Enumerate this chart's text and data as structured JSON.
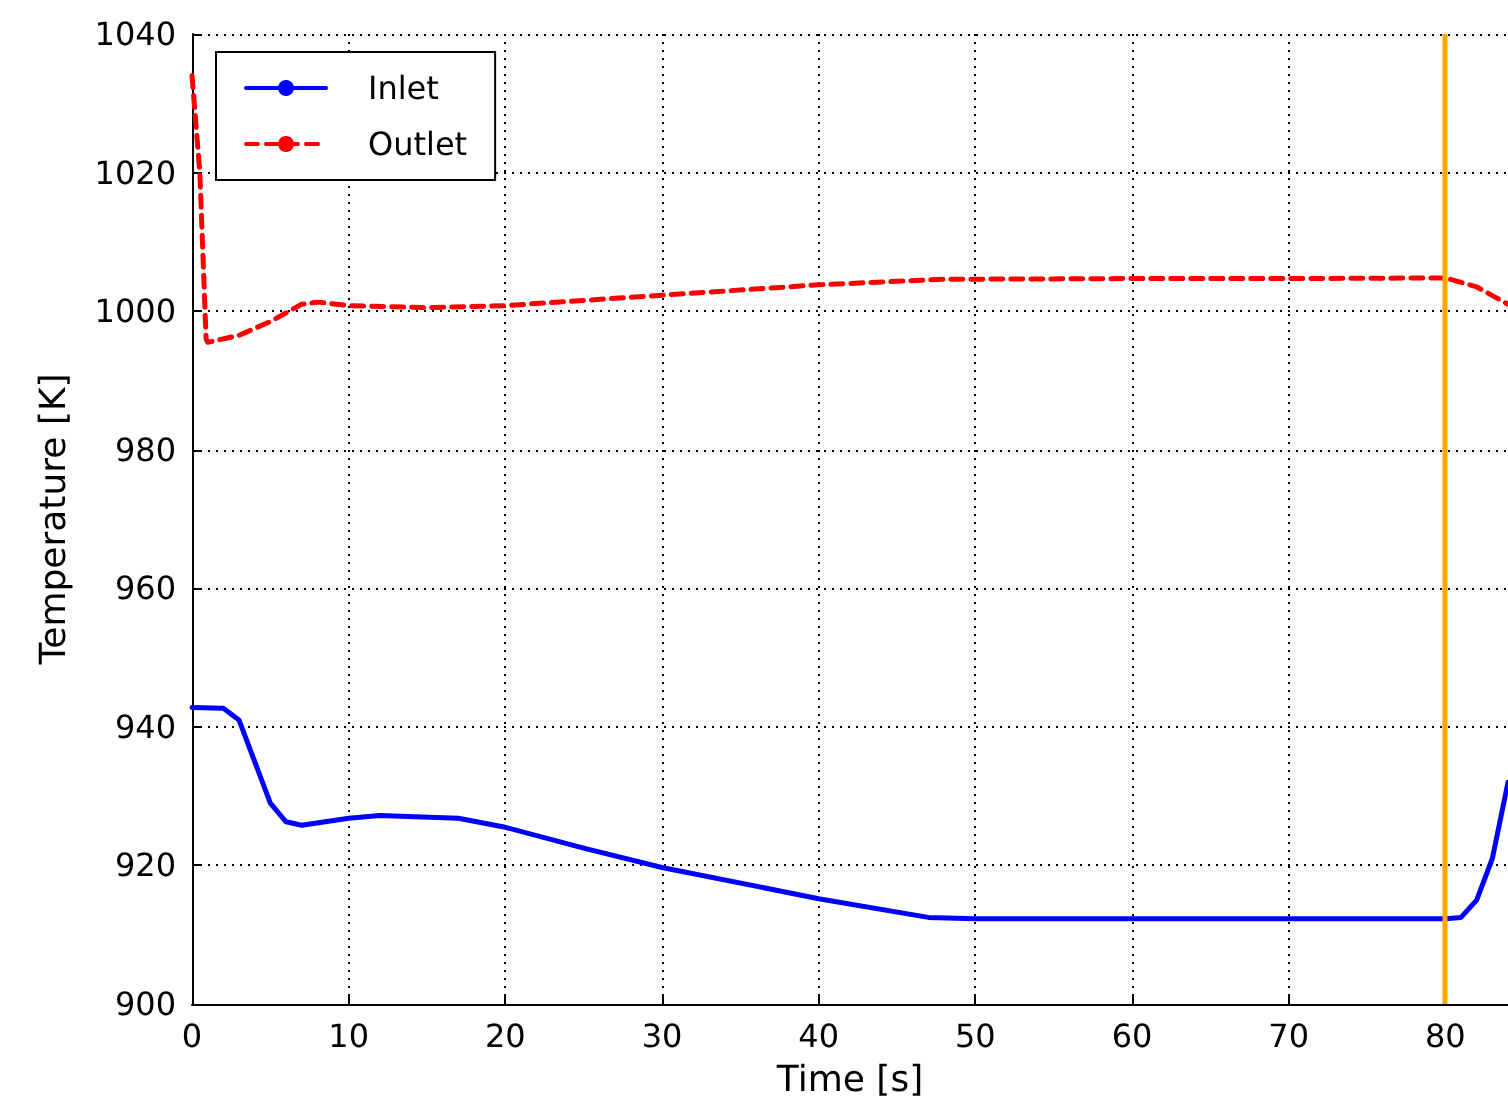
{
  "chart_data": {
    "type": "line",
    "xlabel": "Time [s]",
    "ylabel": "Temperature [K]",
    "xlim": [
      0,
      84
    ],
    "xticks": [
      0,
      10,
      20,
      30,
      40,
      50,
      60,
      70,
      80
    ],
    "ylim": [
      900,
      1040
    ],
    "yticks": [
      900,
      920,
      940,
      960,
      980,
      1000,
      1020,
      1040
    ],
    "grid": true,
    "legend": "top left",
    "marker": "none",
    "series": [
      {
        "name": "Inlet",
        "color": "#0000ff",
        "line_style": "solid",
        "x": [
          0,
          2,
          3,
          4,
          5,
          6,
          7,
          10,
          12,
          17,
          20,
          25,
          30,
          40,
          47,
          50,
          60,
          70,
          80,
          81,
          82,
          83,
          84
        ],
        "values": [
          942.8,
          942.7,
          941,
          935,
          929,
          926.3,
          925.8,
          926.8,
          927.2,
          926.8,
          925.5,
          922.5,
          919.7,
          915.2,
          912.5,
          912.3,
          912.3,
          912.3,
          912.3,
          912.5,
          915,
          921,
          932
        ]
      },
      {
        "name": "Outlet",
        "color": "#ff0000",
        "line_style": "dashed",
        "x": [
          0,
          0.5,
          0.9,
          1,
          3,
          5,
          7,
          8,
          10,
          15,
          20,
          30,
          40,
          48,
          60,
          70,
          80,
          82,
          84
        ],
        "values": [
          1034,
          1020,
          996,
          995.5,
          996.5,
          998.5,
          1001,
          1001.3,
          1000.8,
          1000.5,
          1000.8,
          1002.3,
          1003.8,
          1004.6,
          1004.7,
          1004.7,
          1004.8,
          1003.5,
          1001
        ]
      }
    ],
    "ref_lines": [
      {
        "axis": "x",
        "value": 80,
        "color": "#ffa500"
      }
    ]
  }
}
